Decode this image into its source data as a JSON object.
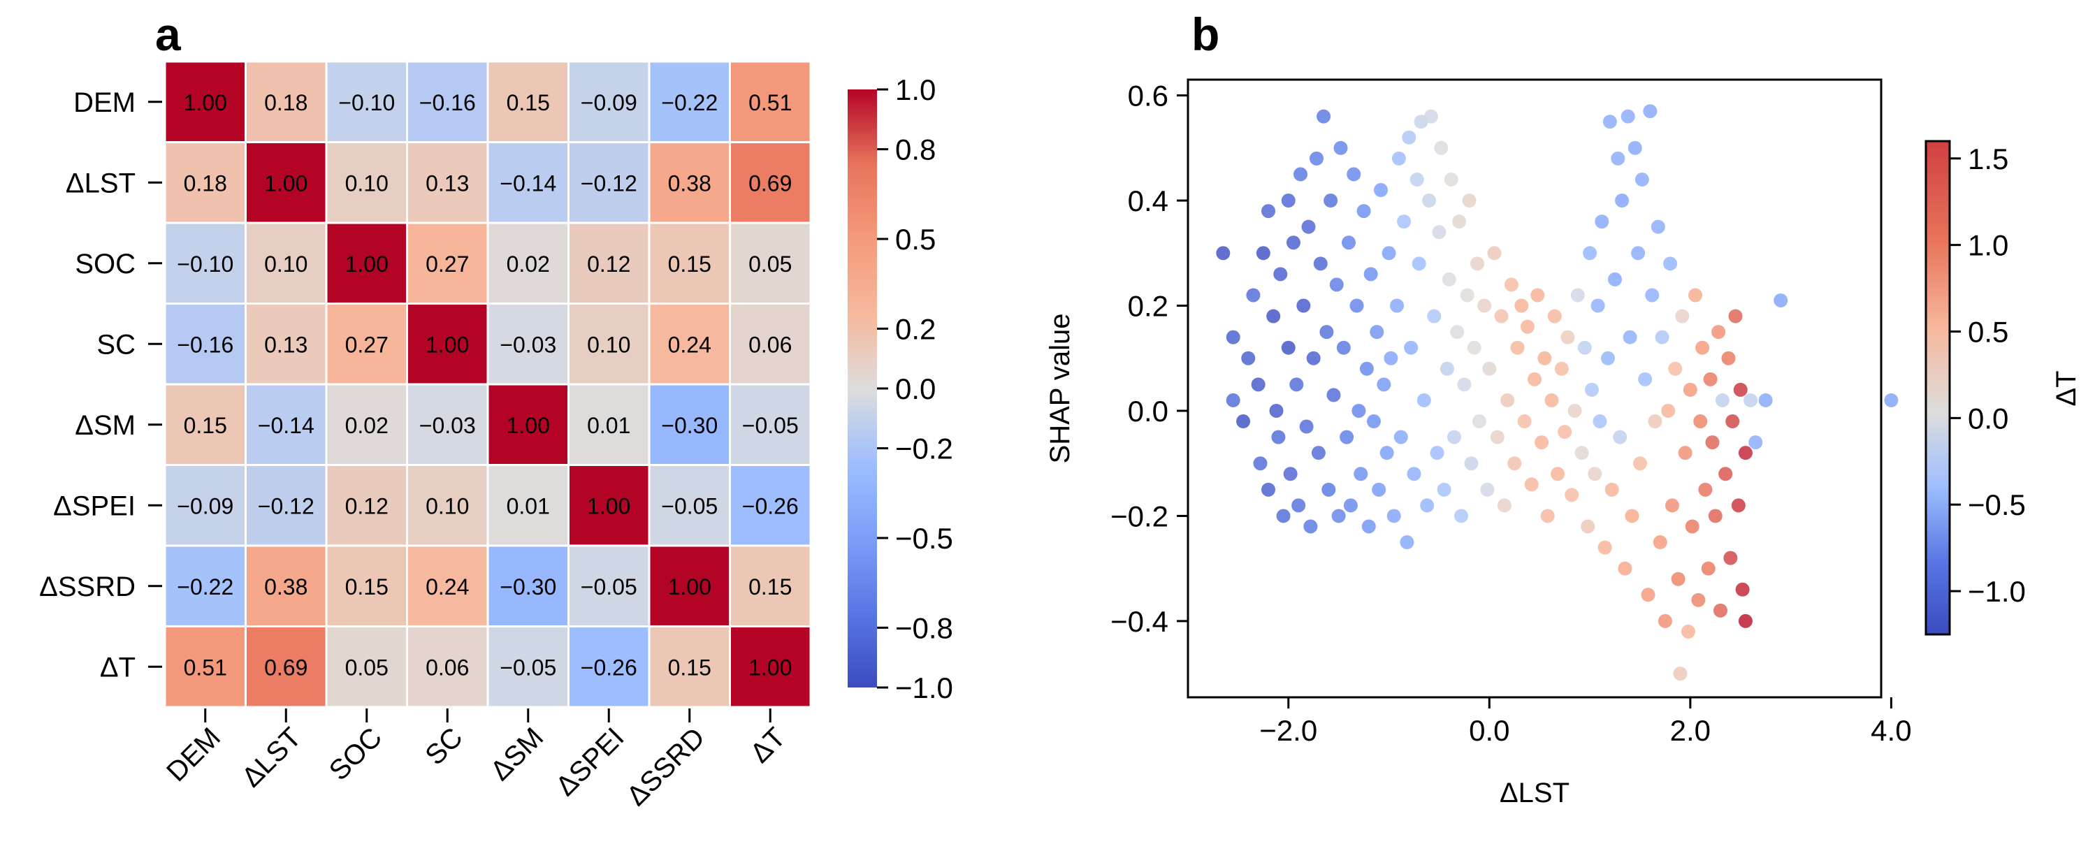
{
  "chart_data": [
    {
      "panel": "a",
      "type": "heatmap",
      "panel_label": "a",
      "labels": [
        "DEM",
        "ΔLST",
        "SOC",
        "SC",
        "ΔSM",
        "ΔSPEI",
        "ΔSSRD",
        "ΔT"
      ],
      "matrix": [
        [
          1.0,
          0.18,
          -0.1,
          -0.16,
          0.15,
          -0.09,
          -0.22,
          0.51
        ],
        [
          0.18,
          1.0,
          0.1,
          0.13,
          -0.14,
          -0.12,
          0.38,
          0.69
        ],
        [
          -0.1,
          0.1,
          1.0,
          0.27,
          0.02,
          0.12,
          0.15,
          0.05
        ],
        [
          -0.16,
          0.13,
          0.27,
          1.0,
          -0.03,
          0.1,
          0.24,
          0.06
        ],
        [
          0.15,
          -0.14,
          0.02,
          -0.03,
          1.0,
          0.01,
          -0.3,
          -0.05
        ],
        [
          -0.09,
          -0.12,
          0.12,
          0.1,
          0.01,
          1.0,
          -0.05,
          -0.26
        ],
        [
          -0.22,
          0.38,
          0.15,
          0.24,
          -0.3,
          -0.05,
          1.0,
          0.15
        ],
        [
          0.51,
          0.69,
          0.05,
          0.06,
          -0.05,
          -0.26,
          0.15,
          1.0
        ]
      ],
      "colorbar": {
        "range": [
          -1.0,
          1.0
        ],
        "ticks": [
          1.0,
          0.8,
          0.5,
          0.2,
          0.0,
          -0.2,
          -0.5,
          -0.8,
          -1.0
        ],
        "tick_labels": [
          "1.0",
          "0.8",
          "0.5",
          "0.2",
          "0.0",
          "−0.2",
          "−0.5",
          "−0.8",
          "−1.0"
        ]
      }
    },
    {
      "panel": "b",
      "type": "scatter",
      "panel_label": "b",
      "xlabel": "ΔLST",
      "ylabel": "SHAP value",
      "xlim": [
        -3.0,
        3.9
      ],
      "ylim": [
        -0.545,
        0.63
      ],
      "xticks": [
        -2.0,
        0.0,
        2.0,
        4.0
      ],
      "xtick_labels": [
        "−2.0",
        "0.0",
        "2.0",
        "4.0"
      ],
      "yticks": [
        0.6,
        0.4,
        0.2,
        0.0,
        -0.2,
        -0.4
      ],
      "ytick_labels": [
        "0.6",
        "0.4",
        "0.2",
        "0.0",
        "−0.2",
        "−0.4"
      ],
      "colorbar": {
        "label": "ΔT",
        "range": [
          -1.25,
          1.6
        ],
        "ticks": [
          1.5,
          1.0,
          0.5,
          0.0,
          -0.5,
          -1.0
        ],
        "tick_labels": [
          "1.5",
          "1.0",
          "0.5",
          "0.0",
          "−0.5",
          "−1.0"
        ]
      },
      "points": [
        {
          "x": -2.65,
          "y": 0.3,
          "c": -1.2
        },
        {
          "x": -2.55,
          "y": 0.14,
          "c": -1.1
        },
        {
          "x": -2.55,
          "y": 0.02,
          "c": -1.0
        },
        {
          "x": -2.45,
          "y": -0.02,
          "c": -1.2
        },
        {
          "x": -2.4,
          "y": 0.1,
          "c": -1.1
        },
        {
          "x": -2.35,
          "y": 0.22,
          "c": -1.0
        },
        {
          "x": -2.3,
          "y": 0.05,
          "c": -1.15
        },
        {
          "x": -2.28,
          "y": -0.1,
          "c": -1.0
        },
        {
          "x": -2.25,
          "y": 0.3,
          "c": -1.2
        },
        {
          "x": -2.2,
          "y": -0.15,
          "c": -1.1
        },
        {
          "x": -2.2,
          "y": 0.38,
          "c": -1.05
        },
        {
          "x": -2.15,
          "y": 0.18,
          "c": -1.2
        },
        {
          "x": -2.12,
          "y": 0.0,
          "c": -1.15
        },
        {
          "x": -2.1,
          "y": -0.05,
          "c": -1.0
        },
        {
          "x": -2.08,
          "y": 0.26,
          "c": -1.1
        },
        {
          "x": -2.05,
          "y": -0.2,
          "c": -1.0
        },
        {
          "x": -2.0,
          "y": 0.4,
          "c": -1.05
        },
        {
          "x": -2.0,
          "y": 0.12,
          "c": -1.2
        },
        {
          "x": -1.98,
          "y": -0.12,
          "c": -1.05
        },
        {
          "x": -1.95,
          "y": 0.32,
          "c": -1.1
        },
        {
          "x": -1.92,
          "y": 0.05,
          "c": -1.0
        },
        {
          "x": -1.9,
          "y": -0.18,
          "c": -0.95
        },
        {
          "x": -1.88,
          "y": 0.45,
          "c": -0.9
        },
        {
          "x": -1.85,
          "y": 0.2,
          "c": -1.15
        },
        {
          "x": -1.82,
          "y": -0.03,
          "c": -1.0
        },
        {
          "x": -1.8,
          "y": 0.35,
          "c": -1.05
        },
        {
          "x": -1.78,
          "y": -0.22,
          "c": -0.9
        },
        {
          "x": -1.75,
          "y": 0.1,
          "c": -1.1
        },
        {
          "x": -1.72,
          "y": 0.48,
          "c": -0.85
        },
        {
          "x": -1.7,
          "y": -0.08,
          "c": -1.0
        },
        {
          "x": -1.68,
          "y": 0.28,
          "c": -1.05
        },
        {
          "x": -1.65,
          "y": 0.56,
          "c": -0.9
        },
        {
          "x": -1.62,
          "y": 0.15,
          "c": -0.95
        },
        {
          "x": -1.6,
          "y": -0.15,
          "c": -0.9
        },
        {
          "x": -1.58,
          "y": 0.4,
          "c": -0.95
        },
        {
          "x": -1.55,
          "y": 0.03,
          "c": -1.0
        },
        {
          "x": -1.52,
          "y": 0.24,
          "c": -0.85
        },
        {
          "x": -1.5,
          "y": -0.2,
          "c": -0.8
        },
        {
          "x": -1.48,
          "y": 0.5,
          "c": -0.8
        },
        {
          "x": -1.45,
          "y": 0.12,
          "c": -0.9
        },
        {
          "x": -1.42,
          "y": -0.05,
          "c": -0.85
        },
        {
          "x": -1.4,
          "y": 0.32,
          "c": -0.8
        },
        {
          "x": -1.38,
          "y": -0.18,
          "c": -0.75
        },
        {
          "x": -1.35,
          "y": 0.45,
          "c": -0.75
        },
        {
          "x": -1.32,
          "y": 0.2,
          "c": -0.8
        },
        {
          "x": -1.3,
          "y": 0.0,
          "c": -0.8
        },
        {
          "x": -1.28,
          "y": -0.12,
          "c": -0.7
        },
        {
          "x": -1.25,
          "y": 0.38,
          "c": -0.7
        },
        {
          "x": -1.22,
          "y": 0.08,
          "c": -0.75
        },
        {
          "x": -1.2,
          "y": -0.22,
          "c": -0.65
        },
        {
          "x": -1.18,
          "y": 0.26,
          "c": -0.7
        },
        {
          "x": -1.15,
          "y": -0.02,
          "c": -0.7
        },
        {
          "x": -1.12,
          "y": 0.15,
          "c": -0.65
        },
        {
          "x": -1.1,
          "y": -0.15,
          "c": -0.6
        },
        {
          "x": -1.08,
          "y": 0.42,
          "c": -0.55
        },
        {
          "x": -1.05,
          "y": 0.05,
          "c": -0.6
        },
        {
          "x": -1.02,
          "y": -0.08,
          "c": -0.55
        },
        {
          "x": -1.0,
          "y": 0.3,
          "c": -0.55
        },
        {
          "x": -0.98,
          "y": 0.1,
          "c": -0.5
        },
        {
          "x": -0.95,
          "y": -0.2,
          "c": -0.5
        },
        {
          "x": -0.92,
          "y": 0.2,
          "c": -0.45
        },
        {
          "x": -0.9,
          "y": 0.48,
          "c": -0.2
        },
        {
          "x": -0.88,
          "y": -0.05,
          "c": -0.45
        },
        {
          "x": -0.85,
          "y": 0.36,
          "c": -0.15
        },
        {
          "x": -0.82,
          "y": -0.25,
          "c": -0.45
        },
        {
          "x": -0.8,
          "y": 0.52,
          "c": -0.1
        },
        {
          "x": -0.78,
          "y": 0.12,
          "c": -0.35
        },
        {
          "x": -0.75,
          "y": -0.12,
          "c": -0.35
        },
        {
          "x": -0.72,
          "y": 0.44,
          "c": 0.0
        },
        {
          "x": -0.7,
          "y": 0.28,
          "c": -0.2
        },
        {
          "x": -0.68,
          "y": 0.55,
          "c": 0.05
        },
        {
          "x": -0.65,
          "y": 0.02,
          "c": -0.25
        },
        {
          "x": -0.62,
          "y": -0.18,
          "c": -0.3
        },
        {
          "x": -0.6,
          "y": 0.4,
          "c": 0.05
        },
        {
          "x": -0.58,
          "y": 0.56,
          "c": 0.1
        },
        {
          "x": -0.55,
          "y": 0.18,
          "c": -0.1
        },
        {
          "x": -0.52,
          "y": -0.08,
          "c": -0.2
        },
        {
          "x": -0.5,
          "y": 0.34,
          "c": 0.1
        },
        {
          "x": -0.48,
          "y": 0.5,
          "c": 0.15
        },
        {
          "x": -0.45,
          "y": -0.15,
          "c": -0.15
        },
        {
          "x": -0.42,
          "y": 0.08,
          "c": 0.0
        },
        {
          "x": -0.4,
          "y": 0.25,
          "c": 0.15
        },
        {
          "x": -0.38,
          "y": 0.44,
          "c": 0.2
        },
        {
          "x": -0.35,
          "y": -0.05,
          "c": 0.0
        },
        {
          "x": -0.32,
          "y": 0.15,
          "c": 0.15
        },
        {
          "x": -0.3,
          "y": 0.36,
          "c": 0.25
        },
        {
          "x": -0.28,
          "y": -0.2,
          "c": -0.1
        },
        {
          "x": -0.25,
          "y": 0.05,
          "c": 0.1
        },
        {
          "x": -0.22,
          "y": 0.22,
          "c": 0.2
        },
        {
          "x": -0.2,
          "y": 0.4,
          "c": 0.3
        },
        {
          "x": -0.18,
          "y": -0.1,
          "c": 0.05
        },
        {
          "x": -0.15,
          "y": 0.12,
          "c": 0.2
        },
        {
          "x": -0.12,
          "y": 0.28,
          "c": 0.3
        },
        {
          "x": -0.1,
          "y": -0.02,
          "c": 0.15
        },
        {
          "x": -0.05,
          "y": 0.2,
          "c": 0.3
        },
        {
          "x": -0.02,
          "y": -0.15,
          "c": 0.1
        },
        {
          "x": 0.0,
          "y": 0.08,
          "c": 0.25
        },
        {
          "x": 0.05,
          "y": 0.3,
          "c": 0.4
        },
        {
          "x": 0.08,
          "y": -0.05,
          "c": 0.3
        },
        {
          "x": 0.12,
          "y": 0.18,
          "c": 0.45
        },
        {
          "x": 0.15,
          "y": -0.18,
          "c": 0.3
        },
        {
          "x": 0.18,
          "y": 0.02,
          "c": 0.4
        },
        {
          "x": 0.22,
          "y": 0.24,
          "c": 0.5
        },
        {
          "x": 0.25,
          "y": -0.1,
          "c": 0.45
        },
        {
          "x": 0.28,
          "y": 0.12,
          "c": 0.55
        },
        {
          "x": 0.32,
          "y": 0.2,
          "c": 0.6
        },
        {
          "x": 0.35,
          "y": -0.02,
          "c": 0.5
        },
        {
          "x": 0.38,
          "y": 0.16,
          "c": 0.6
        },
        {
          "x": 0.42,
          "y": -0.14,
          "c": 0.55
        },
        {
          "x": 0.45,
          "y": 0.06,
          "c": 0.6
        },
        {
          "x": 0.48,
          "y": 0.22,
          "c": 0.65
        },
        {
          "x": 0.52,
          "y": -0.06,
          "c": 0.6
        },
        {
          "x": 0.55,
          "y": 0.1,
          "c": 0.65
        },
        {
          "x": 0.58,
          "y": -0.2,
          "c": 0.55
        },
        {
          "x": 0.62,
          "y": 0.02,
          "c": 0.6
        },
        {
          "x": 0.65,
          "y": 0.18,
          "c": 0.55
        },
        {
          "x": 0.68,
          "y": -0.12,
          "c": 0.6
        },
        {
          "x": 0.72,
          "y": 0.08,
          "c": 0.5
        },
        {
          "x": 0.75,
          "y": -0.04,
          "c": 0.5
        },
        {
          "x": 0.78,
          "y": 0.14,
          "c": 0.35
        },
        {
          "x": 0.82,
          "y": -0.16,
          "c": 0.5
        },
        {
          "x": 0.85,
          "y": 0.0,
          "c": 0.3
        },
        {
          "x": 0.88,
          "y": 0.22,
          "c": 0.1
        },
        {
          "x": 0.92,
          "y": -0.08,
          "c": 0.25
        },
        {
          "x": 0.95,
          "y": 0.12,
          "c": 0.0
        },
        {
          "x": 0.98,
          "y": -0.22,
          "c": 0.4
        },
        {
          "x": 1.0,
          "y": 0.3,
          "c": -0.3
        },
        {
          "x": 1.02,
          "y": 0.04,
          "c": -0.1
        },
        {
          "x": 1.05,
          "y": -0.12,
          "c": 0.3
        },
        {
          "x": 1.08,
          "y": 0.2,
          "c": -0.35
        },
        {
          "x": 1.1,
          "y": -0.02,
          "c": -0.15
        },
        {
          "x": 1.12,
          "y": 0.36,
          "c": -0.45
        },
        {
          "x": 1.15,
          "y": -0.26,
          "c": 0.6
        },
        {
          "x": 1.18,
          "y": 0.1,
          "c": -0.3
        },
        {
          "x": 1.2,
          "y": 0.55,
          "c": -0.4
        },
        {
          "x": 1.22,
          "y": -0.15,
          "c": 0.6
        },
        {
          "x": 1.25,
          "y": 0.25,
          "c": -0.45
        },
        {
          "x": 1.28,
          "y": 0.48,
          "c": -0.4
        },
        {
          "x": 1.3,
          "y": -0.05,
          "c": 0.0
        },
        {
          "x": 1.32,
          "y": 0.4,
          "c": -0.5
        },
        {
          "x": 1.35,
          "y": -0.3,
          "c": 0.75
        },
        {
          "x": 1.38,
          "y": 0.56,
          "c": -0.4
        },
        {
          "x": 1.4,
          "y": 0.14,
          "c": -0.35
        },
        {
          "x": 1.42,
          "y": -0.2,
          "c": 0.7
        },
        {
          "x": 1.45,
          "y": 0.5,
          "c": -0.45
        },
        {
          "x": 1.48,
          "y": 0.3,
          "c": -0.4
        },
        {
          "x": 1.5,
          "y": -0.1,
          "c": 0.5
        },
        {
          "x": 1.52,
          "y": 0.44,
          "c": -0.4
        },
        {
          "x": 1.55,
          "y": 0.06,
          "c": -0.2
        },
        {
          "x": 1.58,
          "y": -0.35,
          "c": 0.9
        },
        {
          "x": 1.6,
          "y": 0.57,
          "c": -0.45
        },
        {
          "x": 1.62,
          "y": 0.22,
          "c": -0.35
        },
        {
          "x": 1.65,
          "y": -0.02,
          "c": 0.4
        },
        {
          "x": 1.68,
          "y": 0.35,
          "c": -0.4
        },
        {
          "x": 1.7,
          "y": -0.25,
          "c": 0.9
        },
        {
          "x": 1.72,
          "y": 0.14,
          "c": -0.1
        },
        {
          "x": 1.75,
          "y": -0.4,
          "c": 1.0
        },
        {
          "x": 1.78,
          "y": 0.0,
          "c": 0.6
        },
        {
          "x": 1.8,
          "y": 0.28,
          "c": -0.3
        },
        {
          "x": 1.82,
          "y": -0.18,
          "c": 1.0
        },
        {
          "x": 1.85,
          "y": 0.08,
          "c": 0.5
        },
        {
          "x": 1.88,
          "y": -0.32,
          "c": 1.1
        },
        {
          "x": 1.9,
          "y": -0.5,
          "c": 0.4
        },
        {
          "x": 1.92,
          "y": 0.18,
          "c": 0.3
        },
        {
          "x": 1.95,
          "y": -0.08,
          "c": 1.0
        },
        {
          "x": 1.98,
          "y": -0.42,
          "c": 0.6
        },
        {
          "x": 2.0,
          "y": 0.04,
          "c": 0.9
        },
        {
          "x": 2.02,
          "y": -0.22,
          "c": 1.2
        },
        {
          "x": 2.05,
          "y": 0.22,
          "c": 0.7
        },
        {
          "x": 2.08,
          "y": -0.36,
          "c": 1.1
        },
        {
          "x": 2.1,
          "y": -0.02,
          "c": 1.1
        },
        {
          "x": 2.12,
          "y": 0.12,
          "c": 0.9
        },
        {
          "x": 2.15,
          "y": -0.15,
          "c": 1.25
        },
        {
          "x": 2.18,
          "y": -0.3,
          "c": 1.2
        },
        {
          "x": 2.2,
          "y": 0.06,
          "c": 1.2
        },
        {
          "x": 2.22,
          "y": -0.06,
          "c": 1.3
        },
        {
          "x": 2.25,
          "y": -0.2,
          "c": 1.3
        },
        {
          "x": 2.28,
          "y": 0.15,
          "c": 1.0
        },
        {
          "x": 2.3,
          "y": -0.38,
          "c": 1.3
        },
        {
          "x": 2.32,
          "y": 0.02,
          "c": 0.0
        },
        {
          "x": 2.35,
          "y": -0.12,
          "c": 1.35
        },
        {
          "x": 2.38,
          "y": 0.1,
          "c": 1.2
        },
        {
          "x": 2.4,
          "y": -0.28,
          "c": 1.4
        },
        {
          "x": 2.42,
          "y": -0.02,
          "c": 1.4
        },
        {
          "x": 2.45,
          "y": 0.18,
          "c": 1.3
        },
        {
          "x": 2.48,
          "y": -0.18,
          "c": 1.45
        },
        {
          "x": 2.5,
          "y": 0.04,
          "c": 1.45
        },
        {
          "x": 2.52,
          "y": -0.34,
          "c": 1.5
        },
        {
          "x": 2.55,
          "y": -0.08,
          "c": 1.5
        },
        {
          "x": 2.55,
          "y": -0.4,
          "c": 1.55
        },
        {
          "x": 2.6,
          "y": 0.02,
          "c": 0.0
        },
        {
          "x": 2.65,
          "y": -0.06,
          "c": -0.4
        },
        {
          "x": 2.75,
          "y": 0.02,
          "c": -0.45
        },
        {
          "x": 2.9,
          "y": 0.21,
          "c": -0.5
        },
        {
          "x": 4.0,
          "y": 0.02,
          "c": -0.5
        }
      ]
    }
  ]
}
